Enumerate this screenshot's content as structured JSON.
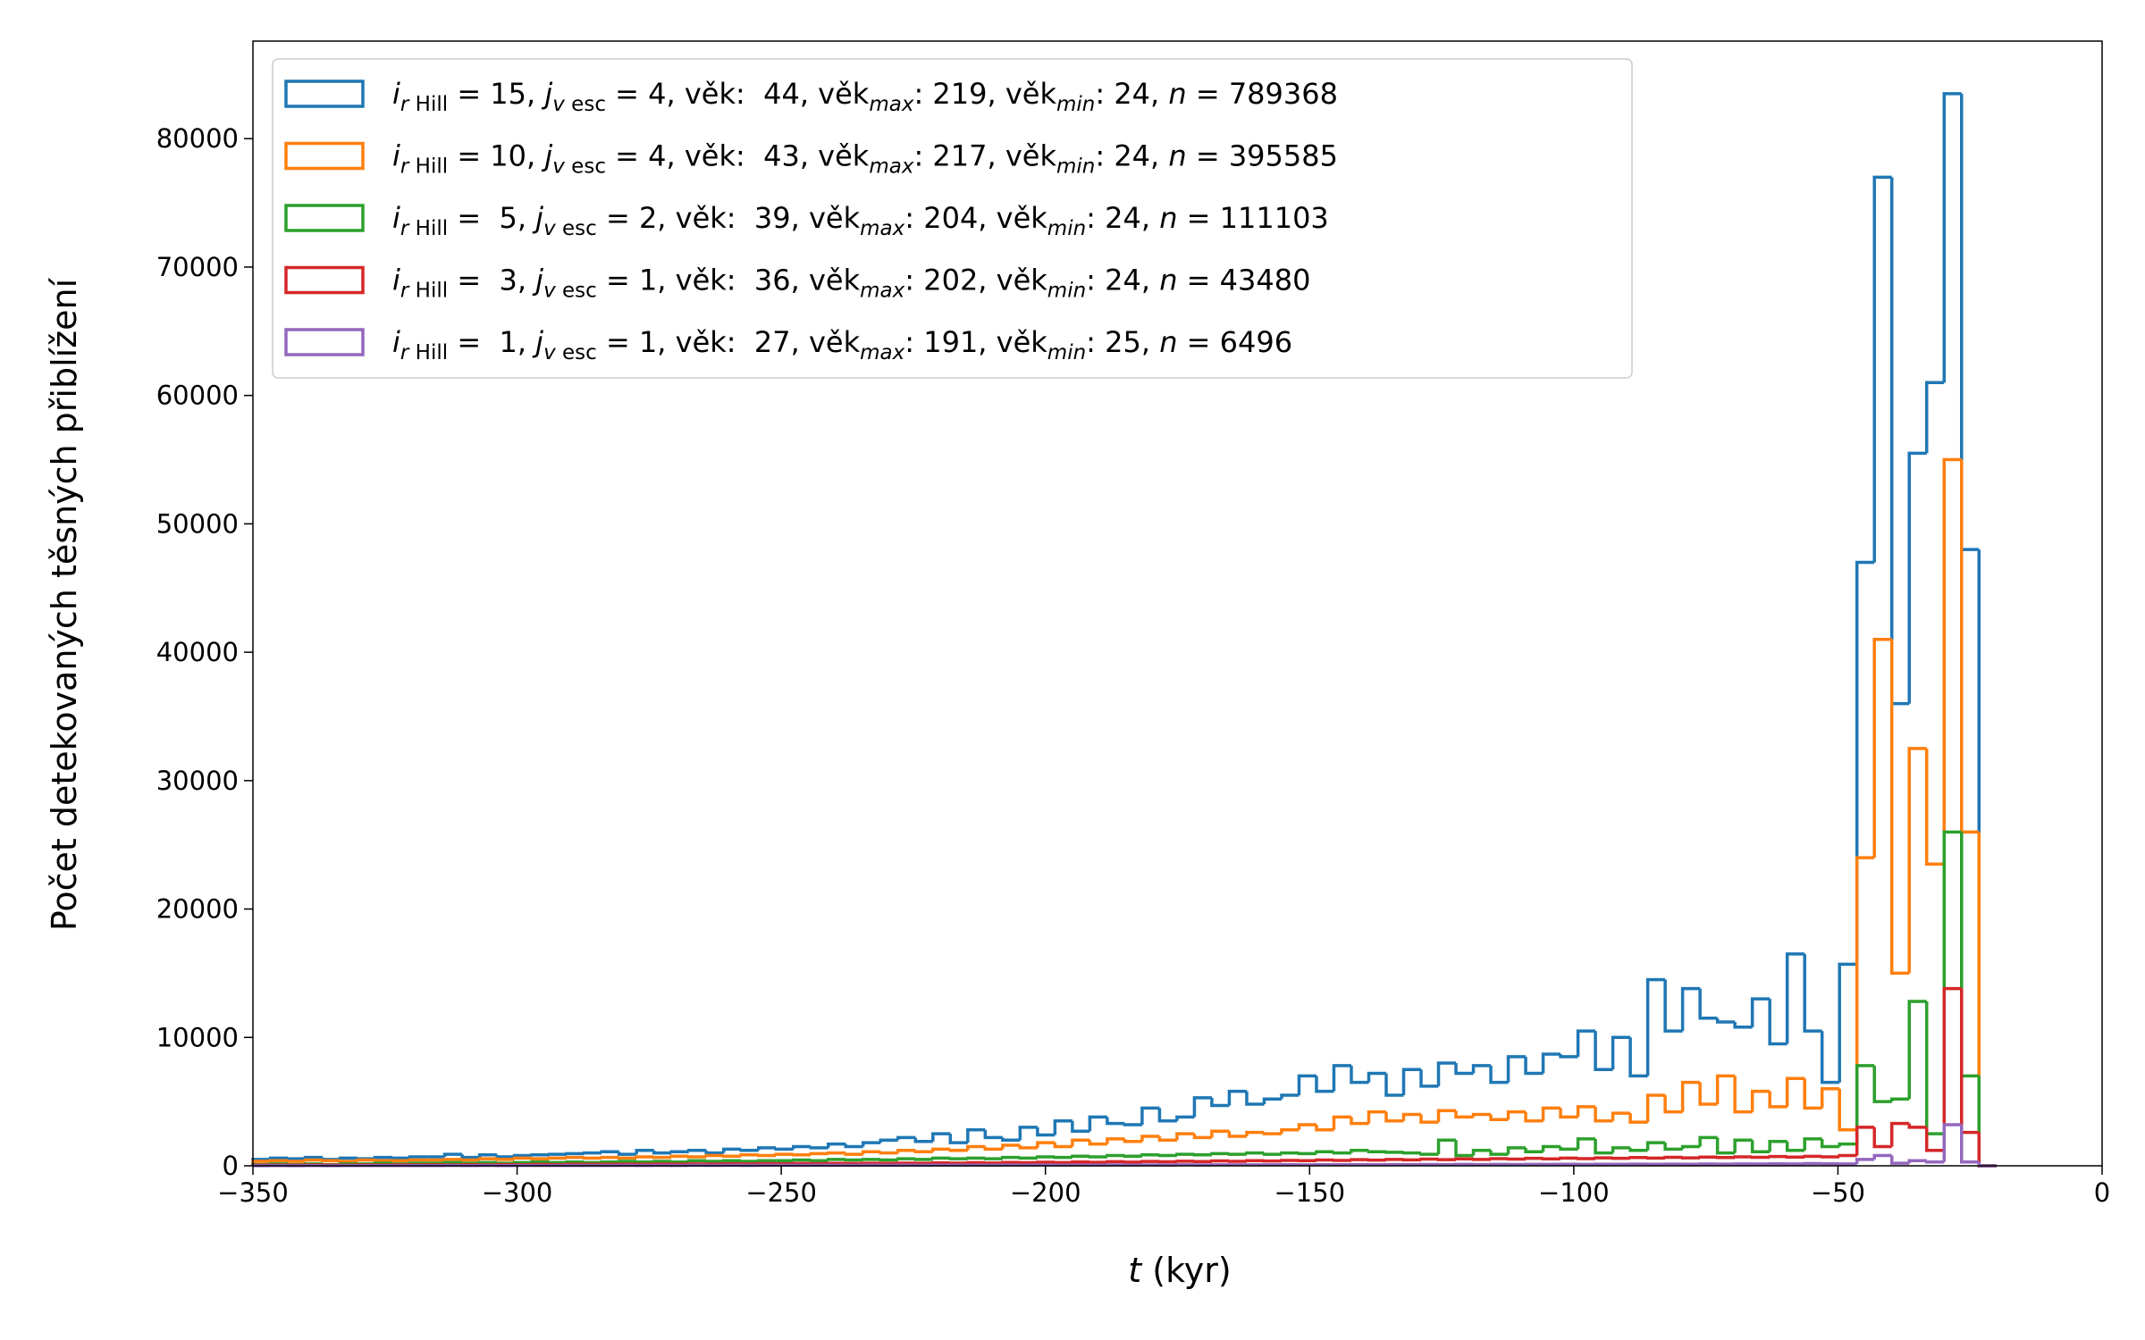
{
  "chart_data": {
    "type": "histogram",
    "xlabel": [
      "t",
      " (kyr)"
    ],
    "ylabel": "Počet detekovaných těsných přiblížení",
    "xlim": [
      -350,
      0
    ],
    "ylim": [
      0,
      87600
    ],
    "xticks": [
      {
        "value": -350,
        "label": "−350"
      },
      {
        "value": -300,
        "label": "−300"
      },
      {
        "value": -250,
        "label": "−250"
      },
      {
        "value": -200,
        "label": "−200"
      },
      {
        "value": -150,
        "label": "−150"
      },
      {
        "value": -100,
        "label": "−100"
      },
      {
        "value": -50,
        "label": "−50"
      },
      0
    ],
    "yticks": [
      0,
      10000,
      20000,
      30000,
      40000,
      50000,
      60000,
      70000,
      80000
    ],
    "legend": "upper left",
    "bins": [
      -350,
      -346.7,
      -343.4,
      -340.1,
      -336.8,
      -333.5,
      -330.2,
      -326.9,
      -323.6,
      -320.3,
      -317,
      -313.7,
      -310.4,
      -307.1,
      -303.8,
      -300.5,
      -297.2,
      -293.9,
      -290.6,
      -287.3,
      -284,
      -280.7,
      -277.4,
      -274.1,
      -270.8,
      -267.5,
      -264.2,
      -260.9,
      -257.6,
      -254.3,
      -251,
      -247.7,
      -244.4,
      -241.1,
      -237.8,
      -234.5,
      -231.2,
      -227.9,
      -224.6,
      -221.3,
      -218,
      -214.7,
      -211.4,
      -208.1,
      -204.8,
      -201.5,
      -198.2,
      -194.9,
      -191.6,
      -188.3,
      -185,
      -181.7,
      -178.4,
      -175.1,
      -171.8,
      -168.5,
      -165.2,
      -161.9,
      -158.6,
      -155.3,
      -152,
      -148.7,
      -145.4,
      -142.1,
      -138.8,
      -135.5,
      -132.2,
      -128.9,
      -125.6,
      -122.3,
      -119,
      -115.7,
      -112.4,
      -109.1,
      -105.8,
      -102.5,
      -99.2,
      -95.9,
      -92.6,
      -89.3,
      -86,
      -82.7,
      -79.4,
      -76.1,
      -72.8,
      -69.5,
      -66.2,
      -62.9,
      -59.6,
      -56.3,
      -53,
      -49.7,
      -46.4,
      -43.1,
      -39.8,
      -36.5,
      -33.2,
      -29.9,
      -26.6,
      -23.3,
      -20
    ],
    "series": [
      {
        "name": [
          "i",
          "r",
          " Hill",
          " = 15, ",
          "j",
          "v",
          " esc",
          " = 4, věk:  44, věk",
          "max",
          ": 219, věk",
          "min",
          ": 24, ",
          "n",
          " = 789368"
        ],
        "color": "#1f77b4",
        "values": [
          500,
          600,
          550,
          650,
          500,
          600,
          550,
          650,
          600,
          700,
          700,
          900,
          650,
          850,
          700,
          800,
          850,
          900,
          950,
          1000,
          1100,
          900,
          1200,
          1000,
          1100,
          1200,
          1000,
          1300,
          1200,
          1400,
          1300,
          1500,
          1400,
          1700,
          1500,
          1800,
          2000,
          2200,
          1900,
          2500,
          1800,
          2800,
          2200,
          2000,
          3000,
          2400,
          3500,
          2700,
          3800,
          3300,
          3200,
          4500,
          3500,
          3800,
          5300,
          4700,
          5800,
          4800,
          5200,
          5500,
          7000,
          5800,
          7800,
          6500,
          7200,
          5500,
          7500,
          6200,
          8000,
          7200,
          7800,
          6500,
          8500,
          7200,
          8700,
          8500,
          10500,
          7500,
          10000,
          7000,
          14500,
          10500,
          13800,
          11500,
          11200,
          10800,
          13000,
          9500,
          16500,
          10500,
          6500,
          15700,
          47000,
          77000,
          36000,
          55500,
          61000,
          83500,
          48000,
          0
        ]
      },
      {
        "name": [
          "i",
          "r",
          " Hill",
          " = 10, ",
          "j",
          "v",
          " esc",
          " = 4, věk:  43, věk",
          "max",
          ": 217, věk",
          "min",
          ": 24, ",
          "n",
          " = 395585"
        ],
        "color": "#ff7f0e",
        "values": [
          350,
          400,
          350,
          450,
          400,
          350,
          450,
          400,
          400,
          450,
          450,
          500,
          450,
          550,
          500,
          600,
          550,
          600,
          650,
          600,
          650,
          600,
          700,
          650,
          750,
          700,
          800,
          750,
          850,
          800,
          900,
          850,
          950,
          1000,
          900,
          1100,
          1000,
          1200,
          1100,
          1300,
          1200,
          1500,
          1300,
          1600,
          1400,
          1800,
          1500,
          2000,
          1700,
          2100,
          1900,
          2300,
          2000,
          2500,
          2200,
          2700,
          2300,
          2600,
          2500,
          2800,
          3200,
          2800,
          3800,
          3300,
          4200,
          3500,
          4000,
          3400,
          4300,
          3800,
          4000,
          3600,
          4200,
          3500,
          4500,
          3800,
          4600,
          3500,
          4100,
          3400,
          5500,
          4200,
          6500,
          4800,
          7000,
          4200,
          5800,
          4600,
          6800,
          4500,
          6000,
          2800,
          24000,
          41000,
          15000,
          32500,
          23500,
          55000,
          26000,
          0
        ]
      },
      {
        "name": [
          "i",
          "r",
          " Hill",
          " =  5, ",
          "j",
          "v",
          " esc",
          " = 2, věk:  39, věk",
          "max",
          ": 204, věk",
          "min",
          ": 24, ",
          "n",
          " = 111103"
        ],
        "color": "#2ca02c",
        "values": [
          100,
          150,
          100,
          150,
          100,
          150,
          150,
          200,
          150,
          200,
          200,
          250,
          200,
          250,
          200,
          250,
          300,
          250,
          300,
          250,
          300,
          350,
          300,
          350,
          300,
          400,
          350,
          400,
          350,
          400,
          400,
          450,
          400,
          500,
          450,
          500,
          450,
          550,
          500,
          600,
          550,
          600,
          550,
          650,
          600,
          700,
          650,
          750,
          700,
          800,
          750,
          850,
          800,
          900,
          850,
          950,
          900,
          1000,
          900,
          1000,
          950,
          1100,
          1000,
          1200,
          1100,
          1050,
          1000,
          900,
          2000,
          800,
          1200,
          900,
          1400,
          1100,
          1500,
          1300,
          2100,
          1000,
          1400,
          1200,
          1800,
          1300,
          1500,
          2200,
          1000,
          2000,
          1100,
          1900,
          1200,
          2100,
          1500,
          1700,
          7800,
          5000,
          5200,
          12800,
          2500,
          26000,
          7000,
          0
        ]
      },
      {
        "name": [
          "i",
          "r",
          " Hill",
          " =  3, ",
          "j",
          "v",
          " esc",
          " = 1, věk:  36, věk",
          "max",
          ": 202, věk",
          "min",
          ": 24, ",
          "n",
          " = 43480"
        ],
        "color": "#d62728",
        "values": [
          50,
          60,
          50,
          70,
          60,
          50,
          70,
          60,
          80,
          70,
          80,
          70,
          90,
          80,
          100,
          90,
          110,
          100,
          120,
          110,
          120,
          130,
          120,
          140,
          130,
          150,
          140,
          160,
          150,
          170,
          160,
          180,
          170,
          190,
          180,
          200,
          190,
          210,
          200,
          230,
          210,
          240,
          220,
          260,
          240,
          280,
          250,
          300,
          270,
          320,
          290,
          340,
          310,
          360,
          330,
          380,
          350,
          400,
          370,
          420,
          400,
          450,
          420,
          480,
          440,
          500,
          460,
          520,
          480,
          540,
          500,
          560,
          520,
          580,
          540,
          600,
          560,
          620,
          580,
          640,
          600,
          660,
          620,
          680,
          640,
          700,
          660,
          720,
          680,
          740,
          700,
          800,
          3000,
          1500,
          3300,
          3000,
          1200,
          13800,
          2600,
          0
        ]
      },
      {
        "name": [
          "i",
          "r",
          " Hill",
          " =  1, ",
          "j",
          "v",
          " esc",
          " = 1, věk:  27, věk",
          "max",
          ": 191, věk",
          "min",
          ": 25, ",
          "n",
          " = 6496"
        ],
        "color": "#9467bd",
        "values": [
          10,
          15,
          10,
          15,
          10,
          15,
          15,
          20,
          15,
          20,
          20,
          25,
          20,
          25,
          20,
          25,
          30,
          25,
          30,
          25,
          30,
          35,
          30,
          35,
          30,
          40,
          35,
          40,
          35,
          40,
          40,
          45,
          40,
          45,
          40,
          50,
          45,
          50,
          45,
          55,
          50,
          55,
          50,
          60,
          55,
          60,
          55,
          65,
          60,
          70,
          65,
          70,
          65,
          75,
          70,
          80,
          75,
          80,
          75,
          85,
          80,
          90,
          85,
          95,
          90,
          100,
          95,
          105,
          100,
          110,
          100,
          110,
          105,
          115,
          110,
          120,
          115,
          125,
          120,
          130,
          120,
          130,
          125,
          140,
          130,
          150,
          140,
          160,
          150,
          170,
          160,
          150,
          500,
          800,
          200,
          400,
          300,
          3200,
          300,
          0
        ]
      }
    ]
  }
}
